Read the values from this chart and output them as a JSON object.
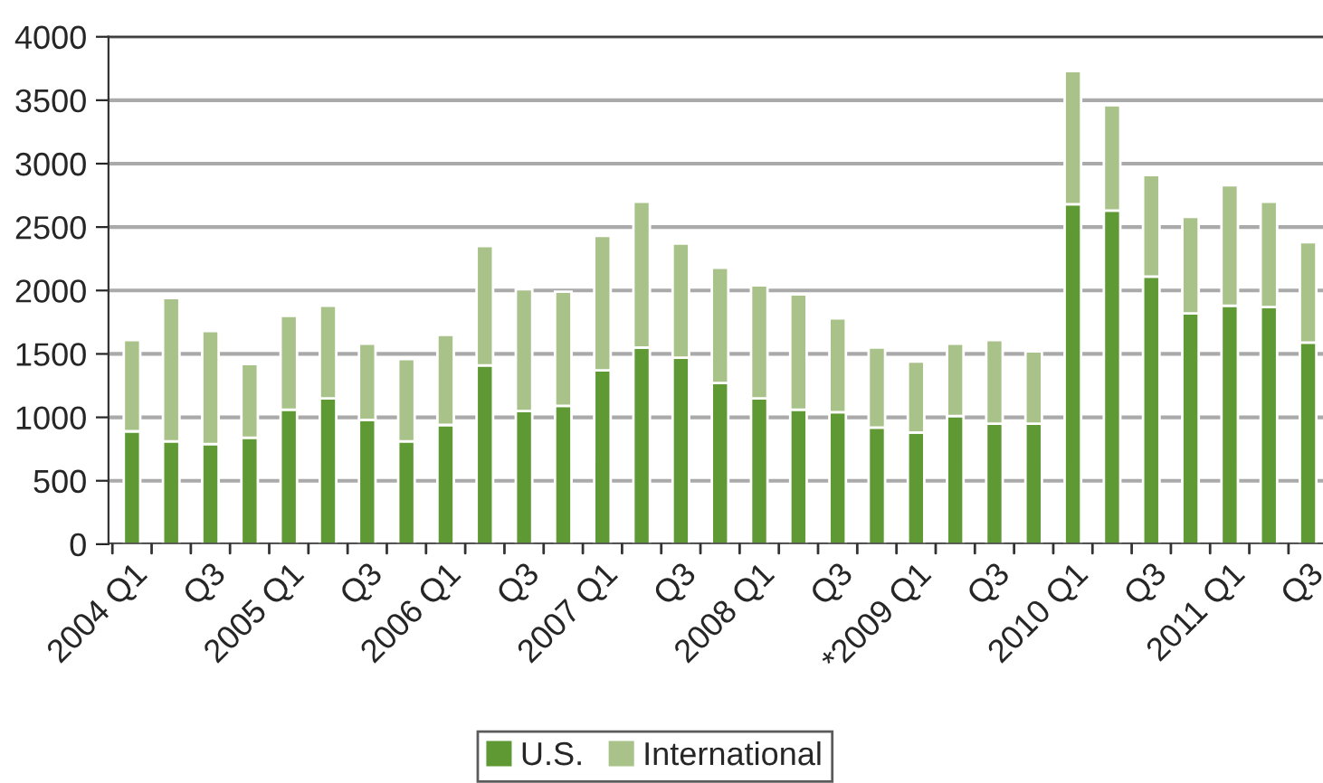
{
  "chart_data": {
    "type": "bar",
    "stacked": true,
    "categories": [
      "2004 Q1",
      null,
      "Q3",
      null,
      "2005 Q1",
      null,
      "Q3",
      null,
      "2006 Q1",
      null,
      "Q3",
      null,
      "2007 Q1",
      null,
      "Q3",
      null,
      "2008 Q1",
      null,
      "Q3",
      null,
      "*2009 Q1",
      null,
      "Q3",
      null,
      "2010 Q1",
      null,
      "Q3",
      null,
      "2011 Q1",
      null,
      "Q3"
    ],
    "series": [
      {
        "name": "U.S.",
        "color": "#5f9934",
        "values": [
          890,
          810,
          790,
          840,
          1060,
          1150,
          980,
          810,
          940,
          1410,
          1050,
          1090,
          1370,
          1550,
          1470,
          1270,
          1150,
          1060,
          1040,
          920,
          880,
          1010,
          950,
          950,
          2680,
          2630,
          2110,
          1820,
          1880,
          1870,
          1590
        ]
      },
      {
        "name": "International",
        "color": "#a8c28a",
        "values": [
          720,
          1130,
          890,
          580,
          740,
          730,
          600,
          650,
          710,
          940,
          960,
          900,
          1060,
          1150,
          900,
          910,
          890,
          910,
          740,
          630,
          560,
          570,
          660,
          570,
          1050,
          830,
          800,
          760,
          950,
          830,
          790
        ]
      }
    ],
    "ylim": [
      0,
      4000
    ],
    "yticks": [
      0,
      500,
      1000,
      1500,
      2000,
      2500,
      3000,
      3500,
      4000
    ],
    "grid": "y",
    "legend": "bottom"
  }
}
